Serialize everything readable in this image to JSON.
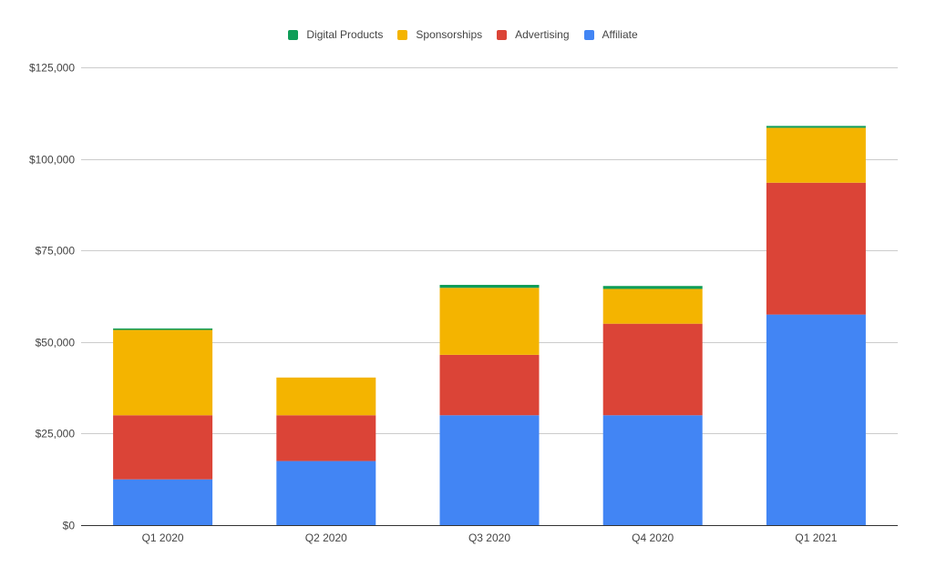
{
  "chart_data": {
    "type": "bar",
    "stacked": true,
    "categories": [
      "Q1 2020",
      "Q2 2020",
      "Q3 2020",
      "Q4 2020",
      "Q1 2021"
    ],
    "series": [
      {
        "name": "Affiliate",
        "color": "#4285f4",
        "values": [
          12500,
          17500,
          30000,
          30000,
          57500
        ]
      },
      {
        "name": "Advertising",
        "color": "#db4437",
        "values": [
          17500,
          12500,
          16500,
          25000,
          36000
        ]
      },
      {
        "name": "Sponsorships",
        "color": "#f4b400",
        "values": [
          23300,
          10300,
          18300,
          9500,
          15000
        ]
      },
      {
        "name": "Digital Products",
        "color": "#0f9d58",
        "values": [
          400,
          0,
          800,
          800,
          500
        ]
      }
    ],
    "legend_order": [
      "Digital Products",
      "Sponsorships",
      "Advertising",
      "Affiliate"
    ],
    "legend_position": "top",
    "y_ticks": [
      "$0",
      "$25,000",
      "$50,000",
      "$75,000",
      "$100,000",
      "$125,000"
    ],
    "ylim": [
      0,
      125000
    ],
    "grid": true
  }
}
